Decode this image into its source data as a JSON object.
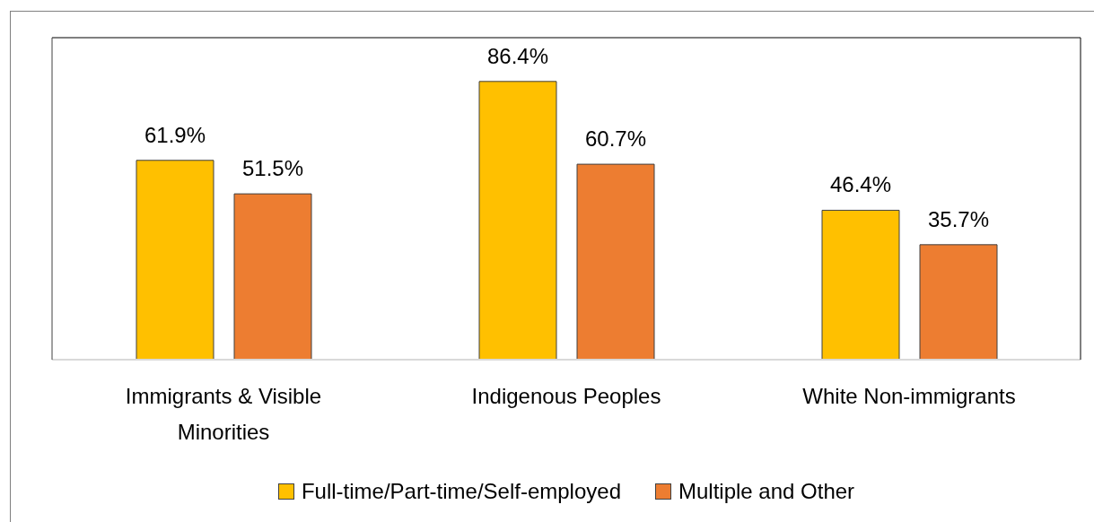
{
  "chart_data": {
    "type": "bar",
    "categories": [
      "Immigrants & Visible Minorities",
      "Indigenous Peoples",
      "White Non-immigrants"
    ],
    "series": [
      {
        "name": "Full-time/Part-time/Self-employed",
        "color": "#ffc000",
        "values": [
          61.9,
          86.4,
          46.4
        ],
        "value_labels": [
          "61.9%",
          "86.4%",
          "46.4%"
        ]
      },
      {
        "name": "Multiple and Other",
        "color": "#ed7d31",
        "values": [
          51.5,
          60.7,
          35.7
        ],
        "value_labels": [
          "51.5%",
          "60.7%",
          "35.7%"
        ]
      }
    ],
    "ylim": [
      0,
      100
    ],
    "tick_labels": "x",
    "grid": false,
    "legend": "bottom"
  }
}
